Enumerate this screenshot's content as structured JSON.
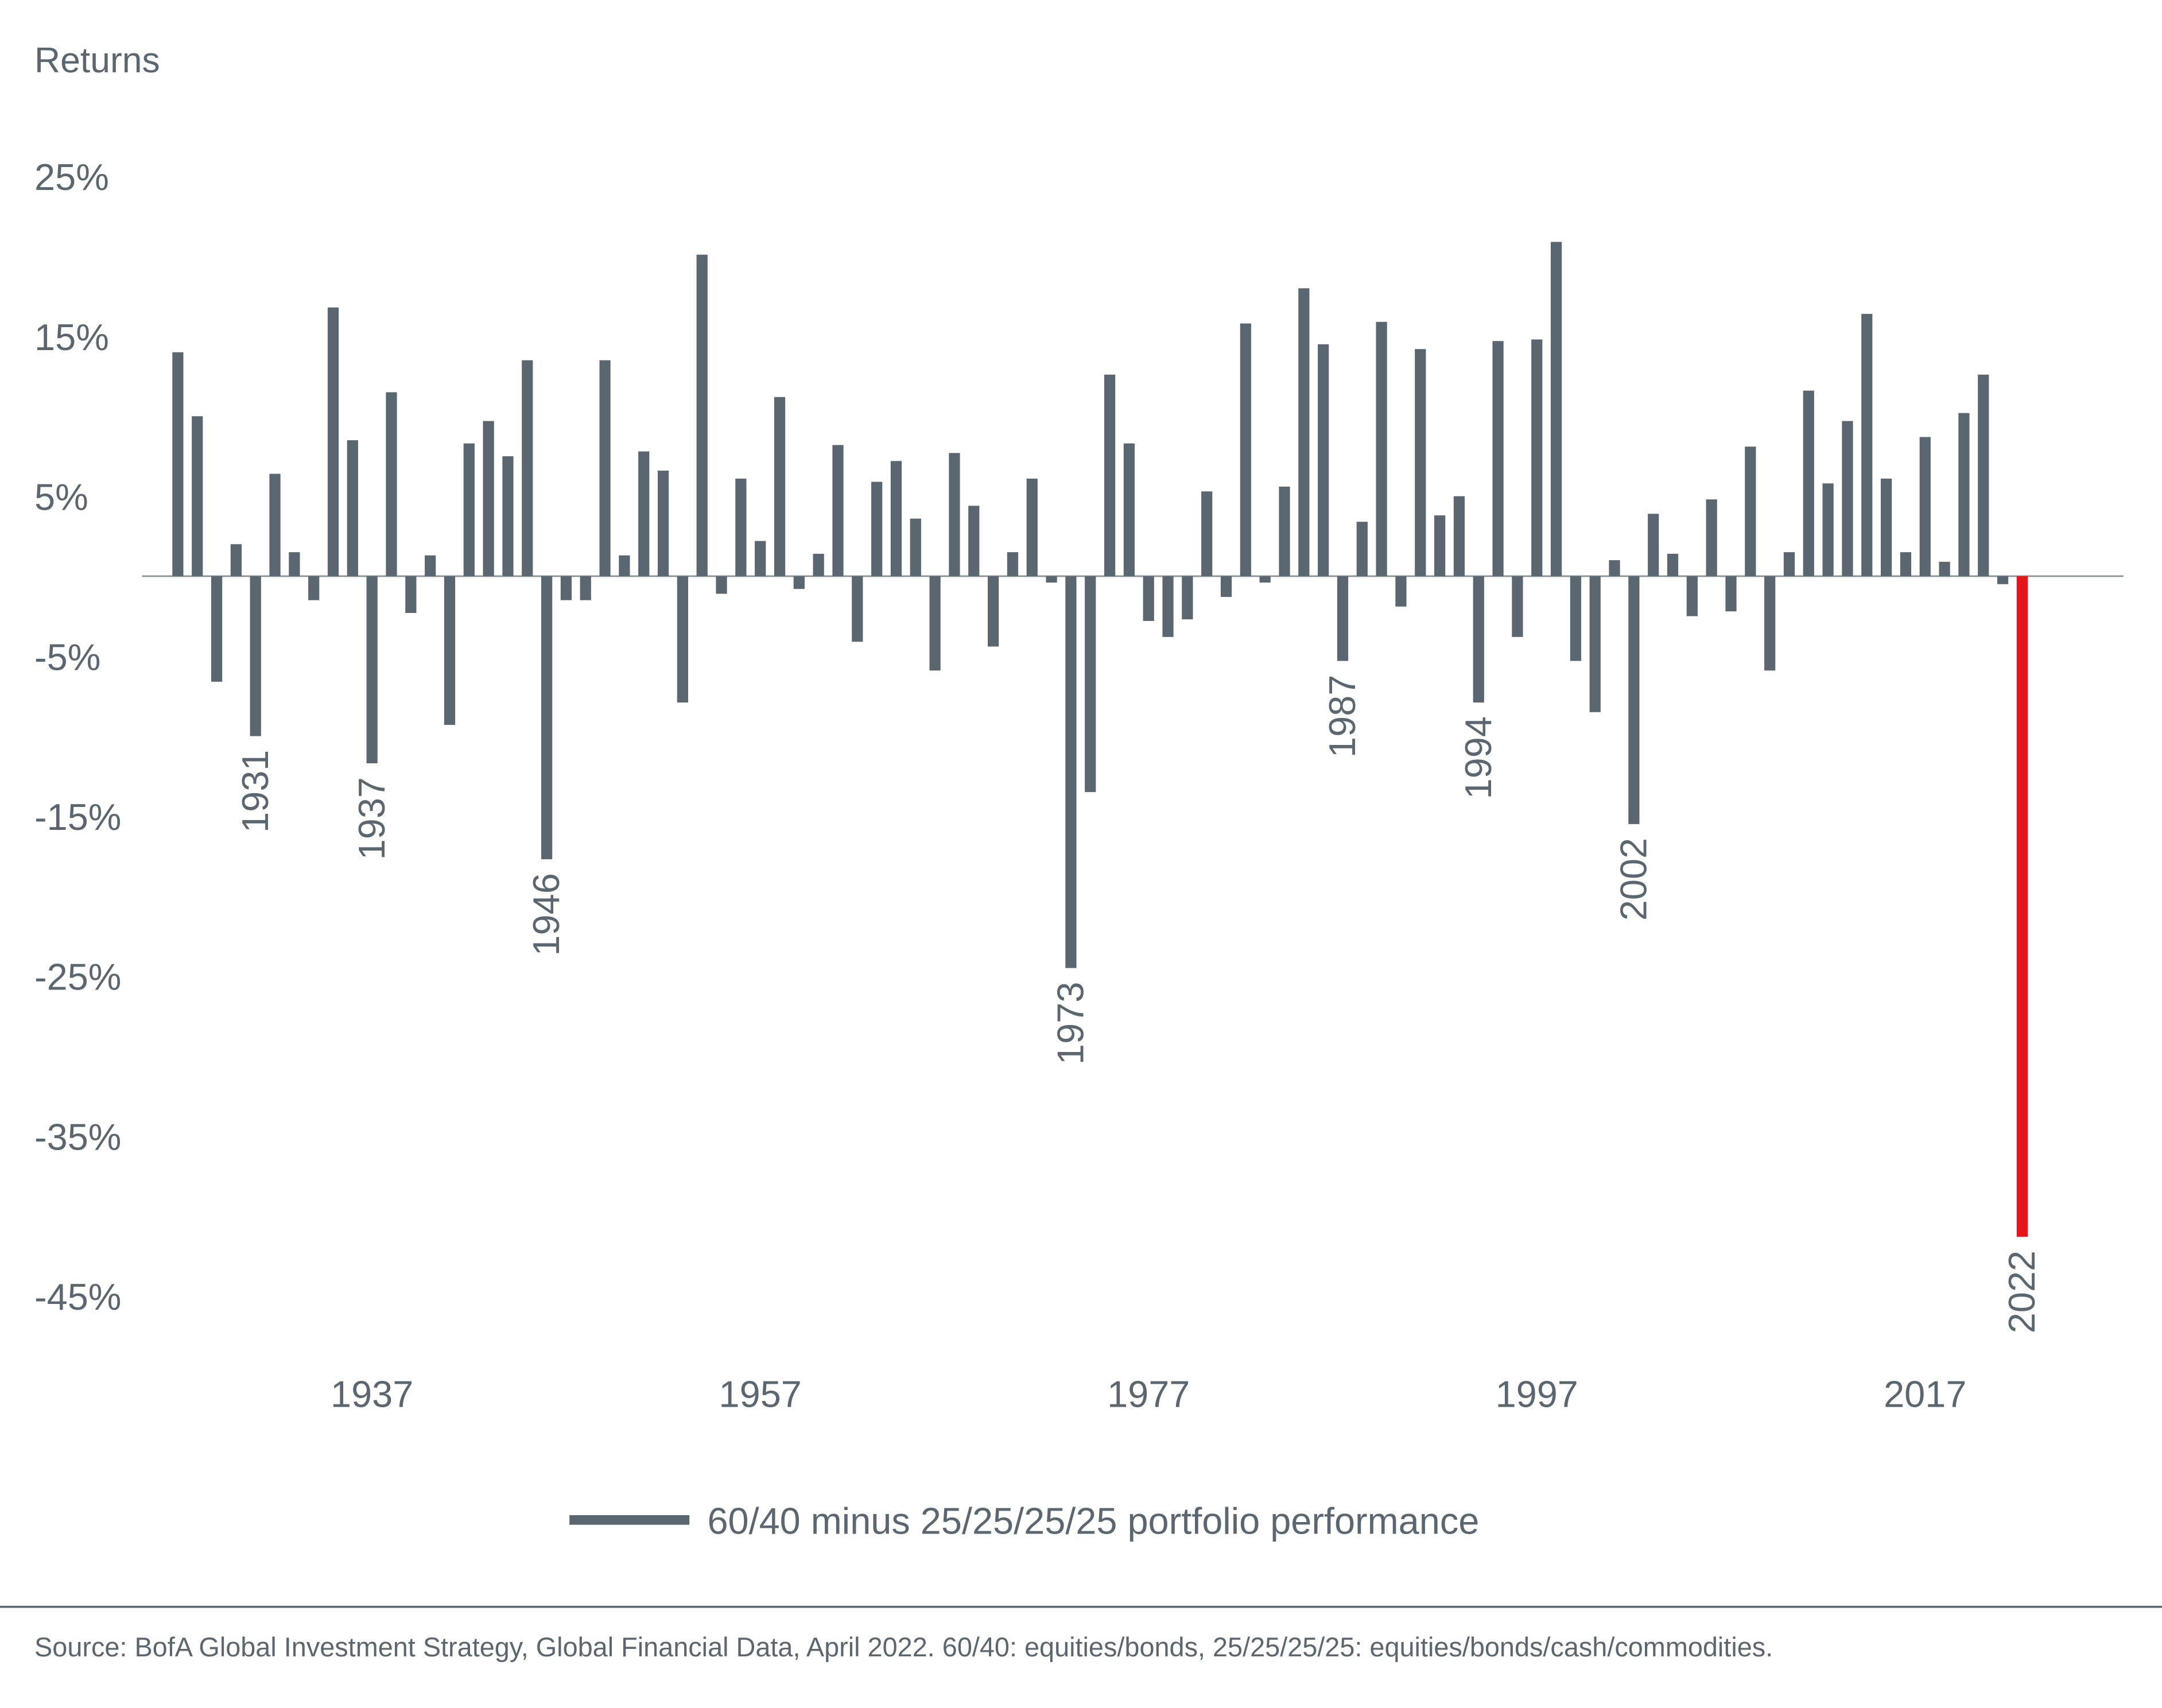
{
  "chart_data": {
    "type": "bar",
    "ylabel": "Returns",
    "ylim": [
      -45,
      25
    ],
    "yticks": [
      "25%",
      "15%",
      "5%",
      "-5%",
      "-15%",
      "-25%",
      "-35%",
      "-45%"
    ],
    "ytick_values": [
      25,
      15,
      5,
      -5,
      -15,
      -25,
      -35,
      -45
    ],
    "xticks": [
      "1937",
      "1957",
      "1977",
      "1997",
      "2017"
    ],
    "grid": false,
    "legend_position": "bottom",
    "series": [
      {
        "name": "60/40 minus 25/25/25/25 portfolio performance",
        "color": "#5b6770",
        "highlight_color": "#e3171b",
        "highlight_year": 2022,
        "years": [
          1927,
          1928,
          1929,
          1930,
          1931,
          1932,
          1933,
          1934,
          1935,
          1936,
          1937,
          1938,
          1939,
          1940,
          1941,
          1942,
          1943,
          1944,
          1945,
          1946,
          1947,
          1948,
          1949,
          1950,
          1951,
          1952,
          1953,
          1954,
          1955,
          1956,
          1957,
          1958,
          1959,
          1960,
          1961,
          1962,
          1963,
          1964,
          1965,
          1966,
          1967,
          1968,
          1969,
          1970,
          1971,
          1972,
          1973,
          1974,
          1975,
          1976,
          1977,
          1978,
          1979,
          1980,
          1981,
          1982,
          1983,
          1984,
          1985,
          1986,
          1987,
          1988,
          1989,
          1990,
          1991,
          1992,
          1993,
          1994,
          1995,
          1996,
          1997,
          1998,
          1999,
          2000,
          2001,
          2002,
          2003,
          2004,
          2005,
          2006,
          2007,
          2008,
          2009,
          2010,
          2011,
          2012,
          2013,
          2014,
          2015,
          2016,
          2017,
          2018,
          2019,
          2020,
          2021,
          2022
        ],
        "values": [
          14.0,
          10.0,
          -6.6,
          2.0,
          -10.0,
          6.4,
          1.5,
          -1.5,
          16.8,
          8.5,
          -11.7,
          11.5,
          -2.3,
          1.3,
          -9.3,
          8.3,
          9.7,
          7.5,
          13.5,
          -17.7,
          -1.5,
          -1.5,
          13.5,
          1.3,
          7.8,
          6.6,
          -7.9,
          20.1,
          -1.1,
          6.1,
          2.2,
          11.2,
          -0.8,
          1.4,
          8.2,
          -4.1,
          5.9,
          7.2,
          3.6,
          -5.9,
          7.7,
          4.4,
          -4.4,
          1.5,
          6.1,
          -0.4,
          -24.5,
          -13.5,
          12.6,
          8.3,
          -2.8,
          -3.8,
          -2.7,
          5.3,
          -1.3,
          15.8,
          -0.4,
          5.6,
          18.0,
          14.5,
          -5.3,
          3.4,
          15.9,
          -1.9,
          14.2,
          3.8,
          5.0,
          -7.9,
          14.7,
          -3.8,
          14.8,
          20.9,
          -5.3,
          -8.5,
          1.0,
          -15.5,
          3.9,
          1.4,
          -2.5,
          4.8,
          -2.2,
          8.1,
          -5.9,
          1.5,
          11.6,
          5.8,
          9.7,
          16.4,
          6.1,
          1.5,
          8.7,
          0.9,
          10.2,
          12.6,
          -0.5,
          -41.3
        ]
      }
    ],
    "annotations": [
      "1931",
      "1937",
      "1946",
      "1973",
      "1987",
      "1994",
      "2002",
      "2022"
    ]
  },
  "footer": {
    "source": "Source: BofA Global Investment Strategy, Global Financial Data, April 2022. 60/40: equities/bonds, 25/25/25/25: equities/bonds/cash/commodities."
  }
}
